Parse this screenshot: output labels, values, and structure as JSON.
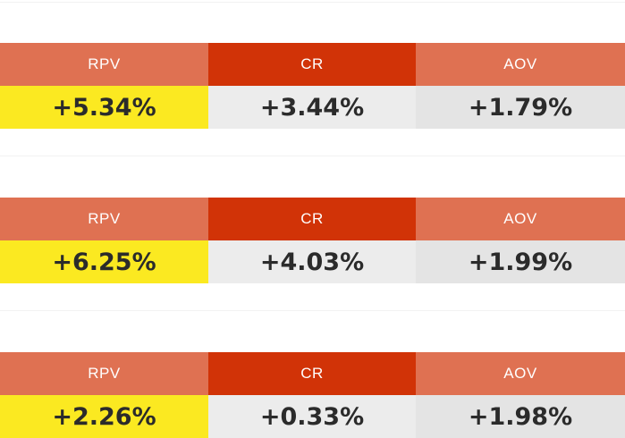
{
  "colors": {
    "header_light": "#df7152",
    "header_dark": "#d13307",
    "highlight": "#fbe921",
    "value_light": "#ececec",
    "value_mid": "#e4e4e4"
  },
  "tables": [
    {
      "headers": [
        "RPV",
        "CR",
        "AOV"
      ],
      "values": [
        "+5.34%",
        "+3.44%",
        "+1.79%"
      ]
    },
    {
      "headers": [
        "RPV",
        "CR",
        "AOV"
      ],
      "values": [
        "+6.25%",
        "+4.03%",
        "+1.99%"
      ]
    },
    {
      "headers": [
        "RPV",
        "CR",
        "AOV"
      ],
      "values": [
        "+2.26%",
        "+0.33%",
        "+1.98%"
      ]
    }
  ]
}
